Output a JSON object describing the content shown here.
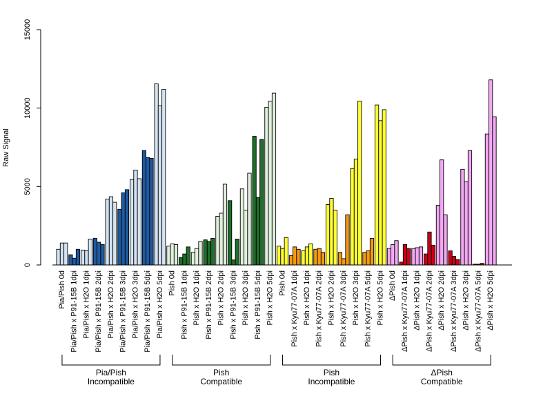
{
  "chart_data": {
    "type": "bar",
    "ylabel": "Raw Signal",
    "ylim": [
      0,
      15000
    ],
    "y_ticks": [
      0,
      5000,
      10000,
      15000
    ],
    "grid": false,
    "legend": "none",
    "colors": {
      "pia_pish_h2o": "#d4e3f1",
      "pia_pish_p91": "#1f5aa0",
      "pish_h2o": "#e1f0dd",
      "pish_p91": "#1f6e2a",
      "pish_inc_h2o": "#ffff33",
      "pish_inc_kyu": "#f59a12",
      "dpish_h2o": "#f2a8f2",
      "dpish_kyu": "#cc0018"
    },
    "categories": [
      {
        "label": "Pia/Pish 0d",
        "color": "pia_pish_h2o",
        "values": [
          1000,
          1400,
          1400
        ]
      },
      {
        "label": "Pia/Pish x P91-15B 1dpi",
        "color": "pia_pish_p91",
        "values": [
          650,
          430,
          1000
        ]
      },
      {
        "label": "Pia/Pish x H2O 1dpi",
        "color": "pia_pish_h2o",
        "values": [
          950,
          900,
          1650
        ]
      },
      {
        "label": "Pia/Pish x P91-15B 2dpi",
        "color": "pia_pish_p91",
        "values": [
          1700,
          1450,
          1300
        ]
      },
      {
        "label": "Pia/Pish x H2O 2dpi",
        "color": "pia_pish_h2o",
        "values": [
          4200,
          4350,
          4000
        ]
      },
      {
        "label": "Pia/Pish x P91-15B 3dpi",
        "color": "pia_pish_p91",
        "values": [
          3550,
          4600,
          4800
        ]
      },
      {
        "label": "Pia/Pish x H2O 3dpi",
        "color": "pia_pish_h2o",
        "values": [
          5450,
          6050,
          5500
        ]
      },
      {
        "label": "Pia/Pish x P91-15B 5dpi",
        "color": "pia_pish_p91",
        "values": [
          7300,
          6850,
          6800
        ]
      },
      {
        "label": "Pia/Pish x H2O 5dpi",
        "color": "pia_pish_h2o",
        "values": [
          11550,
          10150,
          11200
        ]
      },
      {
        "label": "Pish 0d",
        "color": "pish_h2o",
        "values": [
          1200,
          1350,
          1300
        ]
      },
      {
        "label": "Pish x P91-15B 1dpi",
        "color": "pish_p91",
        "values": [
          480,
          700,
          1150
        ]
      },
      {
        "label": "Pish x H2O 1dpi",
        "color": "pish_h2o",
        "values": [
          800,
          1050,
          1500
        ]
      },
      {
        "label": "Pish x P91-15B 2dpi",
        "color": "pish_p91",
        "values": [
          1600,
          1500,
          1700
        ]
      },
      {
        "label": "Pish x H2O 2dpi",
        "color": "pish_h2o",
        "values": [
          3100,
          3300,
          5150
        ]
      },
      {
        "label": "Pish x P91-15B 3dpi",
        "color": "pish_p91",
        "values": [
          4100,
          320,
          1650
        ]
      },
      {
        "label": "Pish x H2O 3dpi",
        "color": "pish_h2o",
        "values": [
          4850,
          3500,
          5850
        ]
      },
      {
        "label": "Pish x P91-15B 5dpi",
        "color": "pish_p91",
        "values": [
          8200,
          4300,
          8000
        ]
      },
      {
        "label": "Pish x H2O 5dpi",
        "color": "pish_h2o",
        "values": [
          10050,
          10450,
          10950
        ]
      },
      {
        "label": "Pish 0d",
        "color": "pish_inc_h2o",
        "values": [
          1200,
          1050,
          1750
        ]
      },
      {
        "label": "Pish x Kyu77-07A 1dpi",
        "color": "pish_inc_kyu",
        "values": [
          600,
          1150,
          1000
        ]
      },
      {
        "label": "Pish x H2O 1dpi",
        "color": "pish_inc_h2o",
        "values": [
          900,
          1150,
          1350
        ]
      },
      {
        "label": "Pish x Kyu77-07A 2dpi",
        "color": "pish_inc_kyu",
        "values": [
          1000,
          1050,
          800
        ]
      },
      {
        "label": "Pish x H2O 2dpi",
        "color": "pish_inc_h2o",
        "values": [
          3850,
          4250,
          3500
        ]
      },
      {
        "label": "Pish x Kyu77-07A 3dpi",
        "color": "pish_inc_kyu",
        "values": [
          800,
          400,
          3200
        ]
      },
      {
        "label": "Pish x H2O 3dpi",
        "color": "pish_inc_h2o",
        "values": [
          6150,
          6750,
          10450
        ]
      },
      {
        "label": "Pish x Kyu77-07A 5dpi",
        "color": "pish_inc_kyu",
        "values": [
          800,
          900,
          1700
        ]
      },
      {
        "label": "Pish x H2O 5dpi",
        "color": "pish_inc_h2o",
        "values": [
          10200,
          9200,
          9900
        ]
      },
      {
        "label": "ΔPish 0d",
        "color": "dpish_h2o",
        "values": [
          1050,
          1300,
          1550
        ]
      },
      {
        "label": "ΔPish x Kyu77-07A 1dpi",
        "color": "dpish_kyu",
        "values": [
          180,
          1300,
          1050
        ]
      },
      {
        "label": "ΔPish x H2O 1dpi",
        "color": "dpish_h2o",
        "values": [
          1050,
          1100,
          1150
        ]
      },
      {
        "label": "ΔPish x Kyu77-07A 2dpi",
        "color": "dpish_kyu",
        "values": [
          700,
          2100,
          1250
        ]
      },
      {
        "label": "ΔPish x H2O 2dpi",
        "color": "dpish_h2o",
        "values": [
          3800,
          6700,
          3200
        ]
      },
      {
        "label": "ΔPish x Kyu77-07A 3dpi",
        "color": "dpish_kyu",
        "values": [
          900,
          550,
          350
        ]
      },
      {
        "label": "ΔPish x H2O 3dpi",
        "color": "dpish_h2o",
        "values": [
          6100,
          5300,
          7300
        ]
      },
      {
        "label": "ΔPish x Kyu77-07A 5dpi",
        "color": "dpish_kyu",
        "values": [
          50,
          50,
          100
        ]
      },
      {
        "label": "ΔPish x H2O 5dpi",
        "color": "dpish_h2o",
        "values": [
          8350,
          11800,
          9450
        ]
      }
    ],
    "groups": [
      {
        "line1": "Pia/Pish",
        "line2": "Incompatible",
        "start": 0,
        "end": 8
      },
      {
        "line1": "Pish",
        "line2": "Compatible",
        "start": 9,
        "end": 17
      },
      {
        "line1": "Pish",
        "line2": "Incompatible",
        "start": 18,
        "end": 26
      },
      {
        "line1": "ΔPish",
        "line2": "Compatible",
        "start": 27,
        "end": 35
      }
    ]
  }
}
